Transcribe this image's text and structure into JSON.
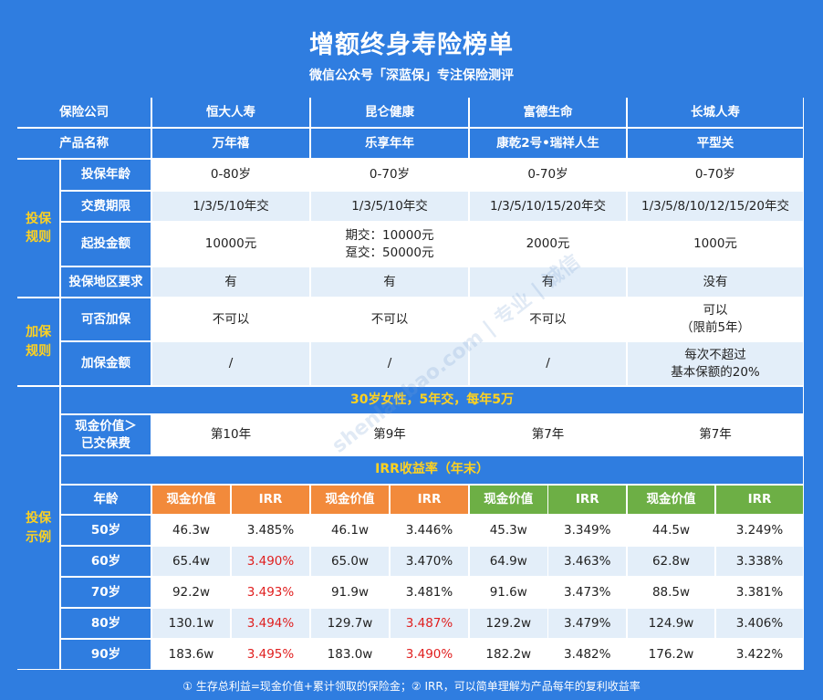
{
  "title": "增额终身寿险榜单",
  "subtitle": "微信公众号「深蓝保」专注保险测评",
  "header": {
    "company_label": "保险公司",
    "product_label": "产品名称",
    "companies": [
      "恒大人寿",
      "昆仑健康",
      "富德生命",
      "长城人寿"
    ],
    "products": [
      "万年禧",
      "乐享年年",
      "康乾2号•瑞祥人生",
      "平型关"
    ]
  },
  "sections": {
    "rules": "投保\n规则",
    "add": "加保\n规则",
    "example": "投保\n示例"
  },
  "rules_rows": [
    {
      "label": "投保年龄",
      "values": [
        "0-80岁",
        "0-70岁",
        "0-70岁",
        "0-70岁"
      ]
    },
    {
      "label": "交费期限",
      "values": [
        "1/3/5/10年交",
        "1/3/5/10年交",
        "1/3/5/10/15/20年交",
        "1/3/5/8/10/12/15/20年交"
      ]
    },
    {
      "label": "起投金额",
      "values": [
        "10000元",
        "期交：10000元\n趸交：50000元",
        "2000元",
        "1000元"
      ]
    },
    {
      "label": "投保地区要求",
      "values": [
        "有",
        "有",
        "有",
        "没有"
      ]
    }
  ],
  "add_rows": [
    {
      "label": "可否加保",
      "values": [
        "不可以",
        "不可以",
        "不可以",
        "可以\n（限前5年）"
      ]
    },
    {
      "label": "加保金额",
      "values": [
        "/",
        "/",
        "/",
        "每次不超过\n基本保额的20%"
      ]
    }
  ],
  "example": {
    "band1": "30岁女性，5年交，每年5万",
    "cash_exceed_label": "现金价值＞\n已交保费",
    "cash_exceed_values": [
      "第10年",
      "第9年",
      "第7年",
      "第7年"
    ],
    "band2": "IRR收益率（年末）",
    "age_label": "年龄",
    "cash_label": "现金价值",
    "irr_label": "IRR",
    "rows": [
      {
        "age": "50岁",
        "values": [
          "46.3w",
          "3.485%",
          "46.1w",
          "3.446%",
          "45.3w",
          "3.349%",
          "44.5w",
          "3.249%"
        ]
      },
      {
        "age": "60岁",
        "values": [
          "65.4w",
          "3.490%",
          "65.0w",
          "3.470%",
          "64.9w",
          "3.463%",
          "62.8w",
          "3.338%"
        ]
      },
      {
        "age": "70岁",
        "values": [
          "92.2w",
          "3.493%",
          "91.9w",
          "3.481%",
          "91.6w",
          "3.473%",
          "88.5w",
          "3.381%"
        ]
      },
      {
        "age": "80岁",
        "values": [
          "130.1w",
          "3.494%",
          "129.7w",
          "3.487%",
          "129.2w",
          "3.479%",
          "124.9w",
          "3.406%"
        ]
      },
      {
        "age": "90岁",
        "values": [
          "183.6w",
          "3.495%",
          "183.0w",
          "3.490%",
          "182.2w",
          "3.482%",
          "176.2w",
          "3.422%"
        ]
      }
    ],
    "highlight": [
      [
        false,
        false,
        false,
        false,
        false,
        false,
        false,
        false
      ],
      [
        false,
        true,
        false,
        false,
        false,
        false,
        false,
        false
      ],
      [
        false,
        true,
        false,
        false,
        false,
        false,
        false,
        false
      ],
      [
        false,
        true,
        false,
        true,
        false,
        false,
        false,
        false
      ],
      [
        false,
        true,
        false,
        true,
        false,
        false,
        false,
        false
      ]
    ]
  },
  "watermark": "shenlanbao.com | 专业 | 诚信",
  "footnote": "① 生存总利益=现金价值+累计领取的保险金；② IRR，可以简单理解为产品每年的复利收益率",
  "colors": {
    "brand_blue": "#2f7de0",
    "section_yellow": "#ffd21f",
    "orange": "#f28a3b",
    "green": "#6daf45",
    "highlight_red": "#e01f1f",
    "light_row": "#e3eef9"
  }
}
